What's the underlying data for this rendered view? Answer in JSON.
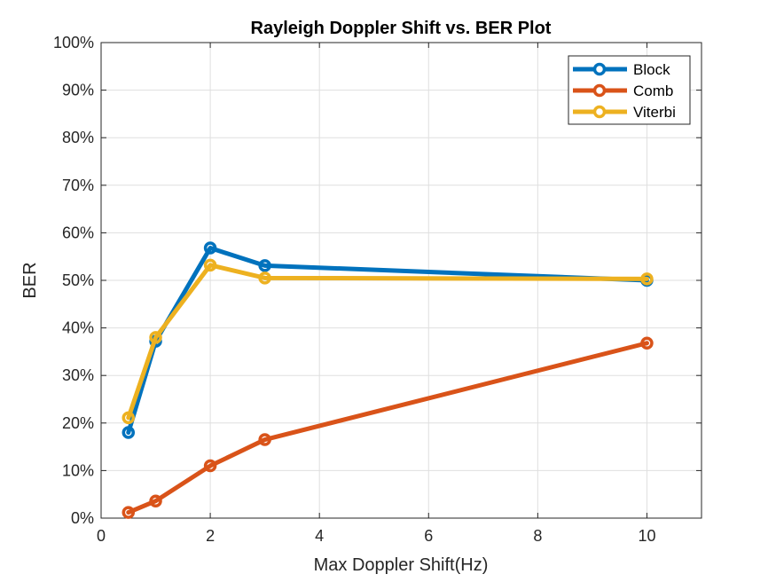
{
  "chart_data": {
    "type": "line",
    "title": "Rayleigh Doppler Shift vs. BER Plot",
    "xlabel": "Max Doppler Shift(Hz)",
    "ylabel": "BER",
    "xlim": [
      0,
      11
    ],
    "ylim": [
      0,
      1
    ],
    "x_ticks": [
      "0",
      "2",
      "4",
      "6",
      "8",
      "10"
    ],
    "y_ticks": [
      "0%",
      "10%",
      "20%",
      "30%",
      "40%",
      "50%",
      "60%",
      "70%",
      "80%",
      "90%",
      "100%"
    ],
    "grid": true,
    "legend_position": "top-right",
    "series": [
      {
        "name": "Block",
        "color": "#0072BD",
        "x": [
          0.5,
          1,
          2,
          3,
          10
        ],
        "y": [
          0.18,
          0.372,
          0.568,
          0.531,
          0.5
        ]
      },
      {
        "name": "Comb",
        "color": "#D95319",
        "x": [
          0.5,
          1,
          2,
          3,
          10
        ],
        "y": [
          0.012,
          0.036,
          0.11,
          0.165,
          0.368
        ]
      },
      {
        "name": "Viterbi",
        "color": "#EDB120",
        "x": [
          0.5,
          1,
          2,
          3,
          10
        ],
        "y": [
          0.211,
          0.38,
          0.532,
          0.505,
          0.503
        ]
      }
    ]
  }
}
